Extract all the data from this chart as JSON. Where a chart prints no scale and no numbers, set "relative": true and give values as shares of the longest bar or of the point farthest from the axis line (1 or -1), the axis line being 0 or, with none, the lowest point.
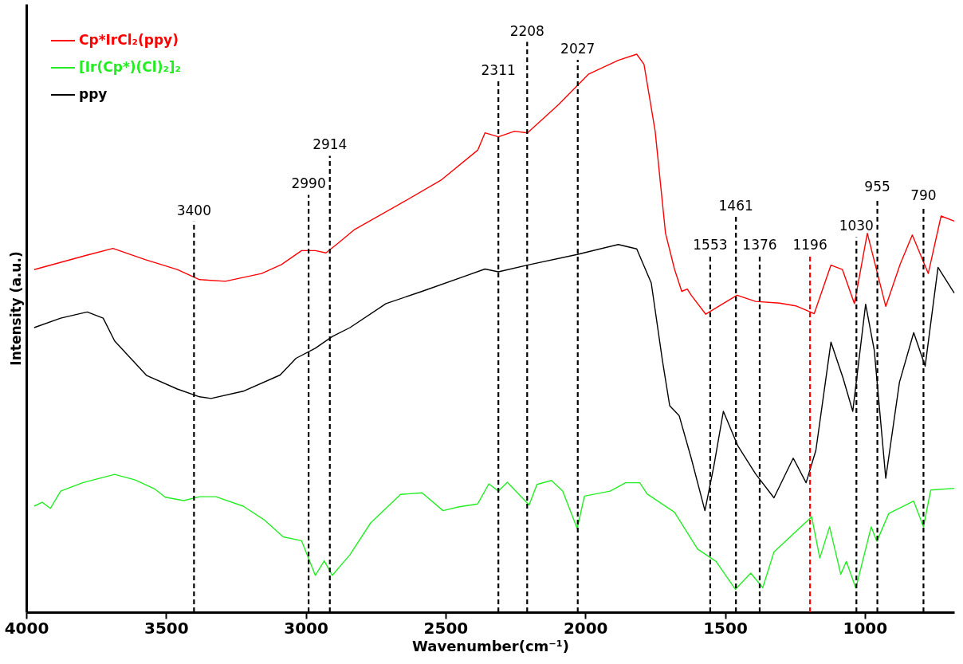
{
  "chart_data": {
    "type": "line",
    "relative": true,
    "xlabel": "Wavenumber(cm⁻¹)",
    "ylabel": "Intensity (a.u.)",
    "xlim": [
      4000,
      680
    ],
    "xticks": [
      4000,
      3500,
      3000,
      2500,
      2000,
      1500,
      1000
    ],
    "grid": false,
    "legend": "top left",
    "line_style": "solid",
    "series": [
      {
        "name": "Cp*IrCl₂(ppy)",
        "color": "#ff0000",
        "x": [
          3972,
          3782,
          3690,
          3575,
          3460,
          3380,
          3288,
          3158,
          3087,
          3015,
          2966,
          2928,
          2885,
          2825,
          2655,
          2517,
          2385,
          2359,
          2311,
          2253,
          2207,
          2095,
          1989,
          1882,
          1816,
          1790,
          1750,
          1713,
          1681,
          1655,
          1635,
          1621,
          1569,
          1520,
          1457,
          1391,
          1305,
          1247,
          1181,
          1121,
          1080,
          1037,
          991,
          925,
          874,
          830,
          773,
          727,
          680
        ],
        "values": [
          0.614,
          0.64,
          0.652,
          0.632,
          0.614,
          0.596,
          0.593,
          0.607,
          0.623,
          0.648,
          0.648,
          0.644,
          0.661,
          0.686,
          0.734,
          0.774,
          0.828,
          0.859,
          0.852,
          0.862,
          0.859,
          0.91,
          0.964,
          0.989,
          1.0,
          0.982,
          0.862,
          0.679,
          0.615,
          0.575,
          0.579,
          0.568,
          0.534,
          0.549,
          0.568,
          0.557,
          0.554,
          0.549,
          0.535,
          0.622,
          0.614,
          0.553,
          0.679,
          0.548,
          0.623,
          0.676,
          0.607,
          0.71,
          0.701
        ]
      },
      {
        "name": "[Ir(Cp*)(Cl)₂]₂",
        "color": "#22ee22",
        "x": [
          3972,
          3943,
          3914,
          3877,
          3799,
          3684,
          3610,
          3541,
          3503,
          3437,
          3380,
          3322,
          3224,
          3150,
          3081,
          3015,
          2966,
          2934,
          2905,
          2842,
          2768,
          2661,
          2584,
          2509,
          2451,
          2385,
          2345,
          2311,
          2279,
          2201,
          2173,
          2121,
          2081,
          2029,
          2003,
          1911,
          1856,
          1805,
          1779,
          1681,
          1598,
          1532,
          1463,
          1408,
          1365,
          1325,
          1190,
          1161,
          1126,
          1086,
          1066,
          1032,
          977,
          957,
          914,
          825,
          790,
          764,
          680
        ],
        "values": [
          0.19,
          0.197,
          0.186,
          0.217,
          0.232,
          0.247,
          0.237,
          0.221,
          0.206,
          0.2,
          0.207,
          0.207,
          0.19,
          0.166,
          0.135,
          0.128,
          0.066,
          0.092,
          0.066,
          0.103,
          0.16,
          0.211,
          0.214,
          0.182,
          0.189,
          0.194,
          0.23,
          0.217,
          0.233,
          0.192,
          0.229,
          0.236,
          0.217,
          0.15,
          0.208,
          0.217,
          0.232,
          0.232,
          0.212,
          0.179,
          0.113,
          0.091,
          0.041,
          0.07,
          0.044,
          0.108,
          0.171,
          0.097,
          0.153,
          0.068,
          0.091,
          0.043,
          0.153,
          0.127,
          0.177,
          0.199,
          0.153,
          0.219,
          0.222
        ]
      },
      {
        "name": "ppy",
        "color": "#000000",
        "x": [
          3972,
          3877,
          3782,
          3725,
          3684,
          3569,
          3460,
          3380,
          3339,
          3224,
          3092,
          3035,
          2966,
          2905,
          2842,
          2713,
          2584,
          2426,
          2359,
          2311,
          2198,
          2029,
          1882,
          1816,
          1764,
          1724,
          1698,
          1664,
          1621,
          1572,
          1540,
          1506,
          1454,
          1391,
          1325,
          1256,
          1210,
          1175,
          1121,
          1078,
          1043,
          997,
          966,
          925,
          876,
          825,
          784,
          738,
          680
        ],
        "values": [
          0.51,
          0.527,
          0.538,
          0.527,
          0.486,
          0.424,
          0.4,
          0.386,
          0.383,
          0.396,
          0.425,
          0.455,
          0.473,
          0.494,
          0.51,
          0.553,
          0.575,
          0.603,
          0.615,
          0.61,
          0.623,
          0.641,
          0.659,
          0.651,
          0.59,
          0.451,
          0.37,
          0.352,
          0.276,
          0.182,
          0.262,
          0.36,
          0.298,
          0.248,
          0.205,
          0.276,
          0.232,
          0.29,
          0.484,
          0.42,
          0.36,
          0.552,
          0.469,
          0.24,
          0.412,
          0.501,
          0.441,
          0.618,
          0.572
        ]
      }
    ],
    "ref_lines": [
      {
        "axis": "x",
        "value": 3400,
        "label": "3400"
      },
      {
        "axis": "x",
        "value": 2990,
        "label": "2990"
      },
      {
        "axis": "x",
        "value": 2914,
        "label": "2914"
      },
      {
        "axis": "x",
        "value": 2311,
        "label": "2311"
      },
      {
        "axis": "x",
        "value": 2208,
        "label": "2208"
      },
      {
        "axis": "x",
        "value": 2027,
        "label": "2027"
      },
      {
        "axis": "x",
        "value": 1553,
        "label": "1553"
      },
      {
        "axis": "x",
        "value": 1461,
        "label": "1461"
      },
      {
        "axis": "x",
        "value": 1376,
        "label": "1376"
      },
      {
        "axis": "x",
        "value": 1196,
        "label": "1196",
        "color": "#ff0000"
      },
      {
        "axis": "x",
        "value": 1030,
        "label": "1030"
      },
      {
        "axis": "x",
        "value": 955,
        "label": "955"
      },
      {
        "axis": "x",
        "value": 790,
        "label": "790"
      }
    ]
  }
}
